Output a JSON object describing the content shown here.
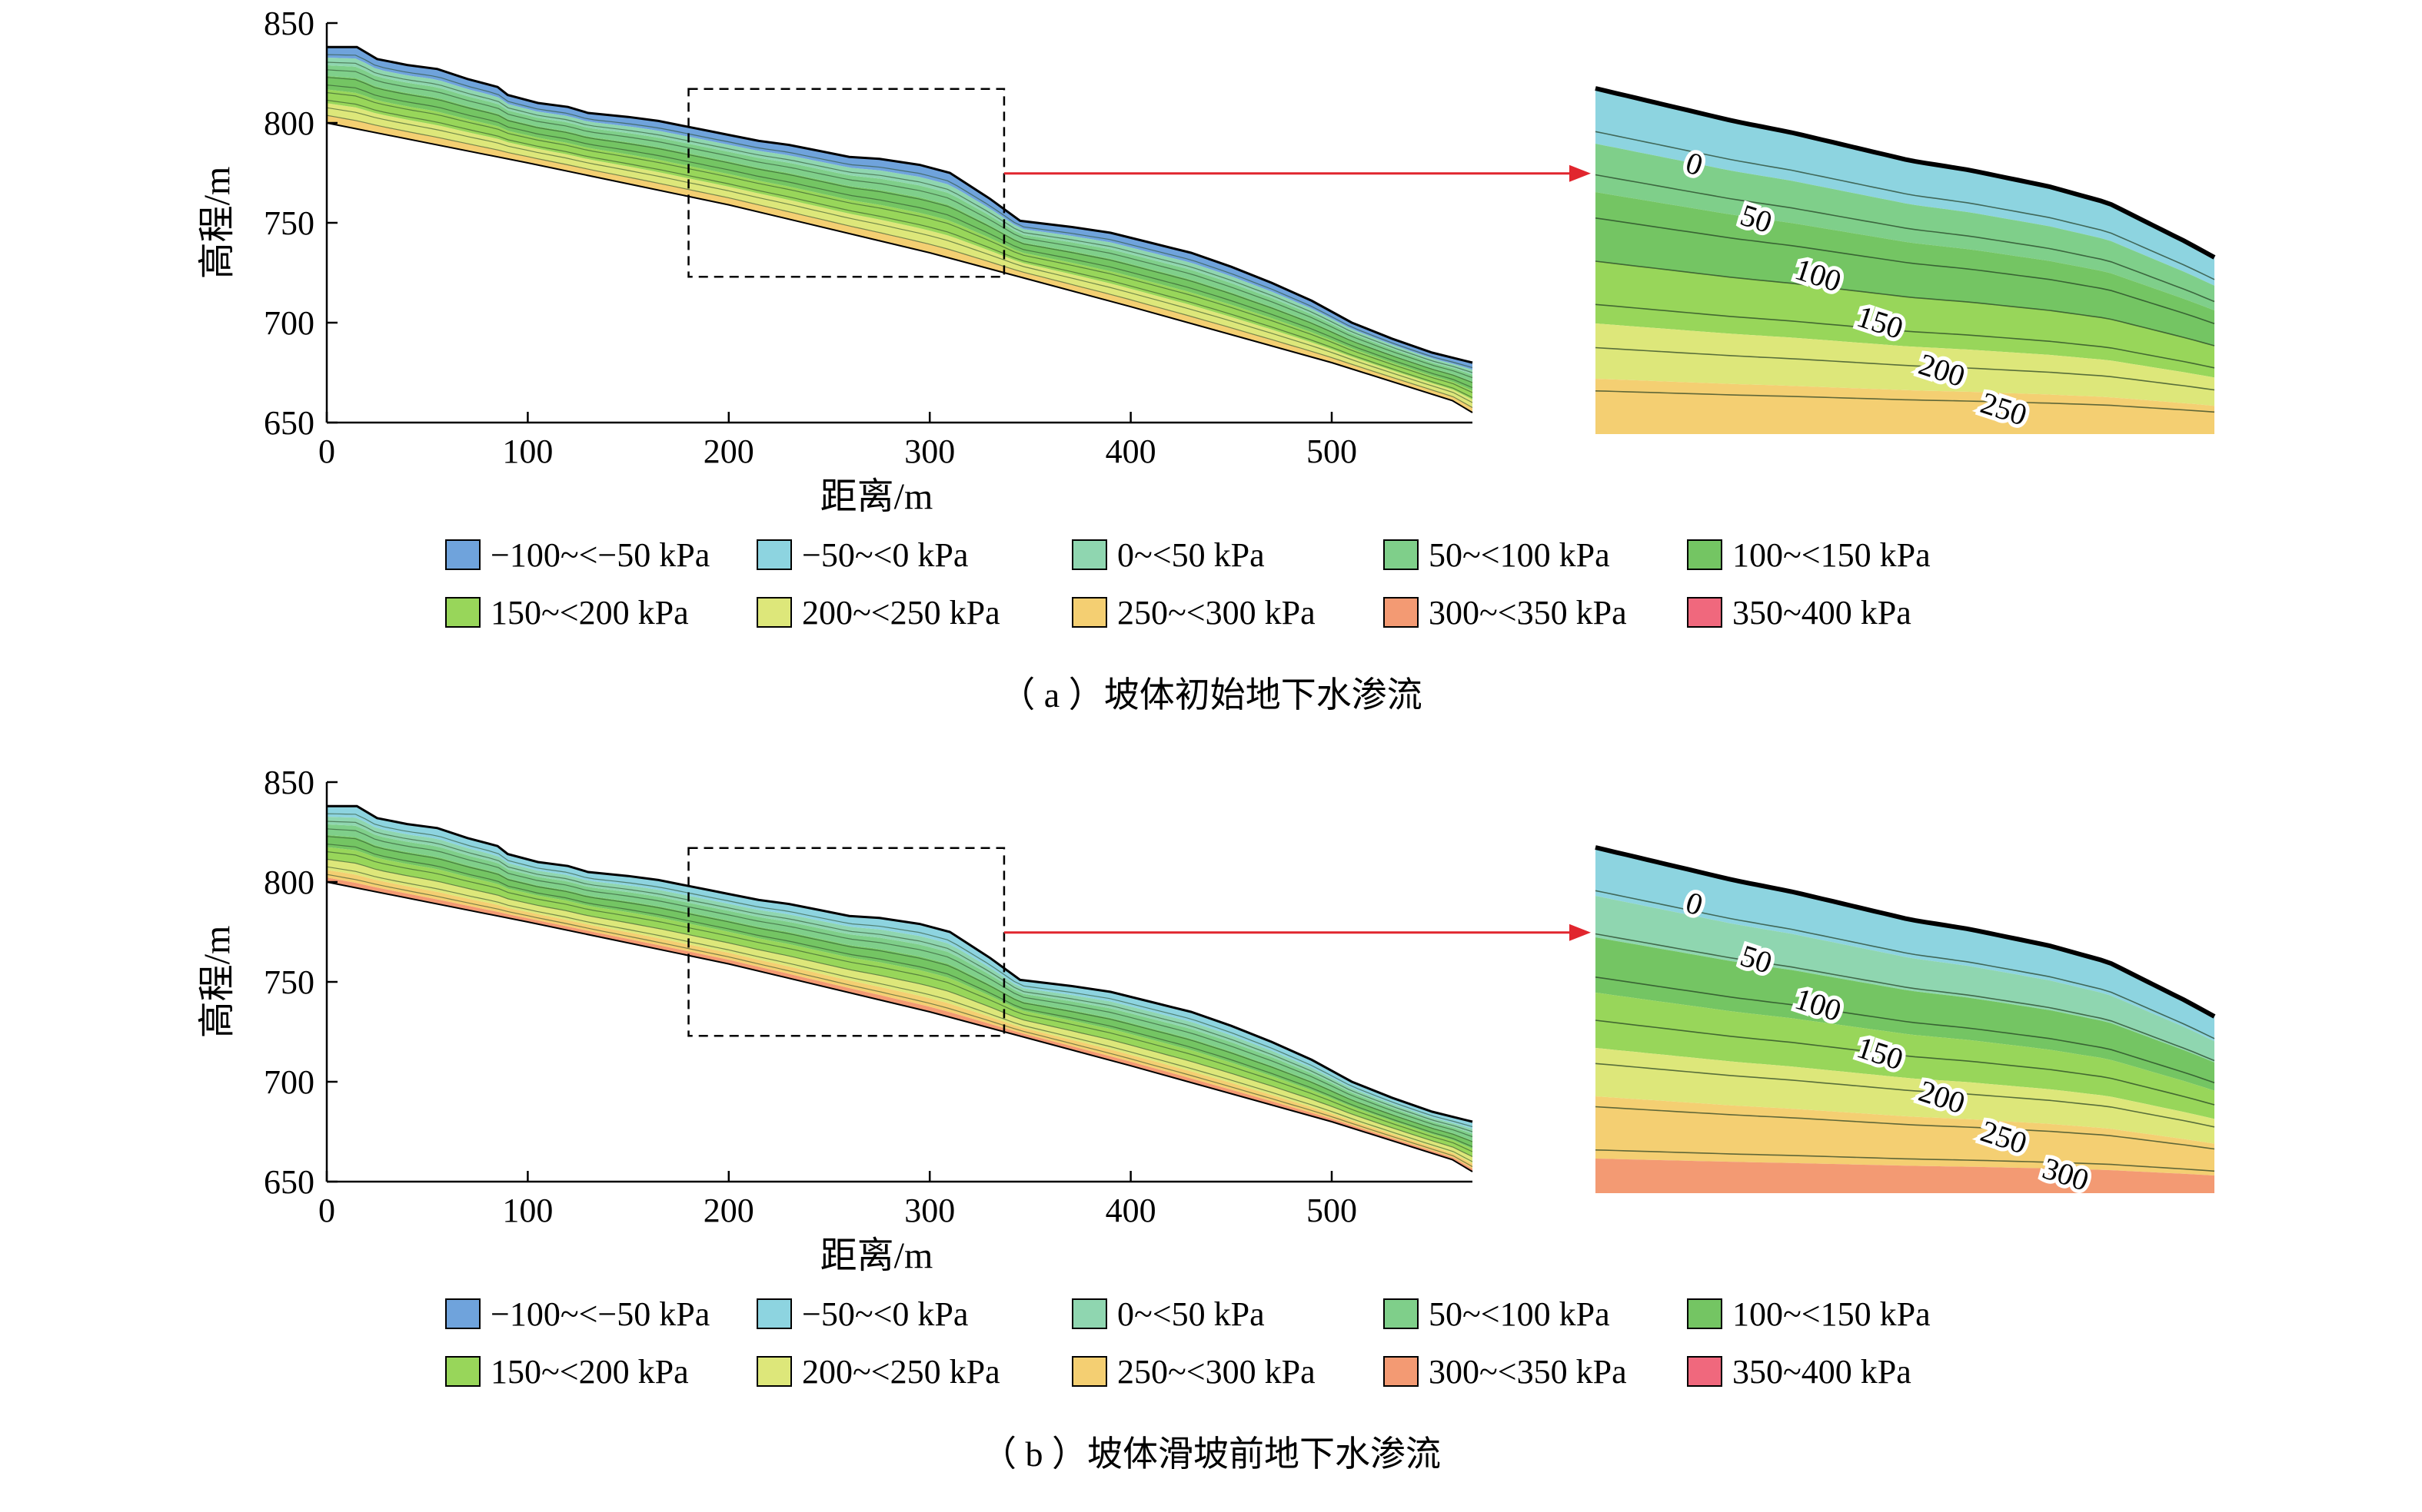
{
  "colors": {
    "zone_colors": [
      "#6fa3dc",
      "#8dd4e0",
      "#8fd6b0",
      "#7fcf8a",
      "#74c563",
      "#98d65a",
      "#dde77a",
      "#f4cf72",
      "#f39a73",
      "#f0687d"
    ],
    "frame": "#000000",
    "arrow": "#e1262e",
    "dashed_box": "#000000"
  },
  "legend": {
    "items": [
      "−100~<−50 kPa",
      "−50~<0 kPa",
      "0~<50 kPa",
      "50~<100 kPa",
      "100~<150 kPa",
      "150~<200 kPa",
      "200~<250 kPa",
      "250~<300 kPa",
      "300~<350 kPa",
      "350~400 kPa"
    ]
  },
  "chart_data": [
    {
      "type": "area",
      "panel_label": "（ a ）坡体初始地下水渗流",
      "xlabel": "距离/m",
      "ylabel": "高程/m",
      "xlim": [
        0,
        570
      ],
      "ylim": [
        650,
        850
      ],
      "xticks": [
        "0",
        "100",
        "200",
        "300",
        "400",
        "500"
      ],
      "yticks": [
        "650",
        "700",
        "750",
        "800",
        "850"
      ],
      "surface": {
        "x": [
          0,
          15,
          25,
          40,
          55,
          70,
          85,
          90,
          105,
          120,
          130,
          150,
          165,
          175,
          180,
          190,
          200,
          215,
          230,
          245,
          260,
          275,
          295,
          310,
          330,
          345,
          370,
          390,
          410,
          430,
          450,
          470,
          490,
          510,
          530,
          550,
          570
        ],
        "y": [
          838,
          838,
          832,
          829,
          827,
          822,
          818,
          814,
          810,
          808,
          805,
          803,
          801,
          799,
          798,
          796,
          794,
          791,
          789,
          786,
          783,
          782,
          779,
          775,
          762,
          751,
          748,
          745,
          740,
          735,
          728,
          720,
          711,
          700,
          692,
          685,
          680
        ]
      },
      "base": {
        "x": [
          0,
          100,
          200,
          300,
          400,
          500,
          560,
          570
        ],
        "y": [
          800,
          780,
          759,
          735,
          708,
          680,
          661,
          655
        ]
      },
      "pressure_zones": [
        "−100~<−50 kPa",
        "150~<200 kPa",
        "100~<150 kPa",
        "50~<100 kPa",
        "0~<50 kPa",
        "200~<250 kPa",
        "250~<300 kPa",
        "300~<350 kPa",
        "350~400 kPa"
      ],
      "zoom_window": {
        "x": [
          180,
          337
        ],
        "y": [
          723,
          817
        ]
      },
      "zoom_contour_labels": [
        "0",
        "50",
        "100",
        "150",
        "200",
        "250"
      ]
    },
    {
      "type": "area",
      "panel_label": "（ b ）坡体滑坡前地下水渗流",
      "xlabel": "距离/m",
      "ylabel": "高程/m",
      "xlim": [
        0,
        570
      ],
      "ylim": [
        650,
        850
      ],
      "xticks": [
        "0",
        "100",
        "200",
        "300",
        "400",
        "500"
      ],
      "yticks": [
        "650",
        "700",
        "750",
        "800",
        "850"
      ],
      "surface": {
        "x": [
          0,
          15,
          25,
          40,
          55,
          70,
          85,
          90,
          105,
          120,
          130,
          150,
          165,
          175,
          180,
          190,
          200,
          215,
          230,
          245,
          260,
          275,
          295,
          310,
          330,
          345,
          370,
          390,
          410,
          430,
          450,
          470,
          490,
          510,
          530,
          550,
          570
        ],
        "y": [
          838,
          838,
          832,
          829,
          827,
          822,
          818,
          814,
          810,
          808,
          805,
          803,
          801,
          799,
          798,
          796,
          794,
          791,
          789,
          786,
          783,
          782,
          779,
          775,
          762,
          751,
          748,
          745,
          740,
          735,
          728,
          720,
          711,
          700,
          692,
          685,
          680
        ]
      },
      "base": {
        "x": [
          0,
          100,
          200,
          300,
          400,
          500,
          560,
          570
        ],
        "y": [
          800,
          780,
          759,
          735,
          708,
          680,
          661,
          655
        ]
      },
      "pressure_zones": [
        "−50~<0 kPa",
        "150~<200 kPa",
        "100~<150 kPa",
        "50~<100 kPa",
        "0~<50 kPa",
        "200~<250 kPa",
        "250~<300 kPa",
        "300~<350 kPa",
        "350~400 kPa"
      ],
      "zoom_window": {
        "x": [
          180,
          337
        ],
        "y": [
          723,
          817
        ]
      },
      "zoom_contour_labels": [
        "0",
        "50",
        "100",
        "150",
        "200",
        "250",
        "300"
      ]
    }
  ]
}
